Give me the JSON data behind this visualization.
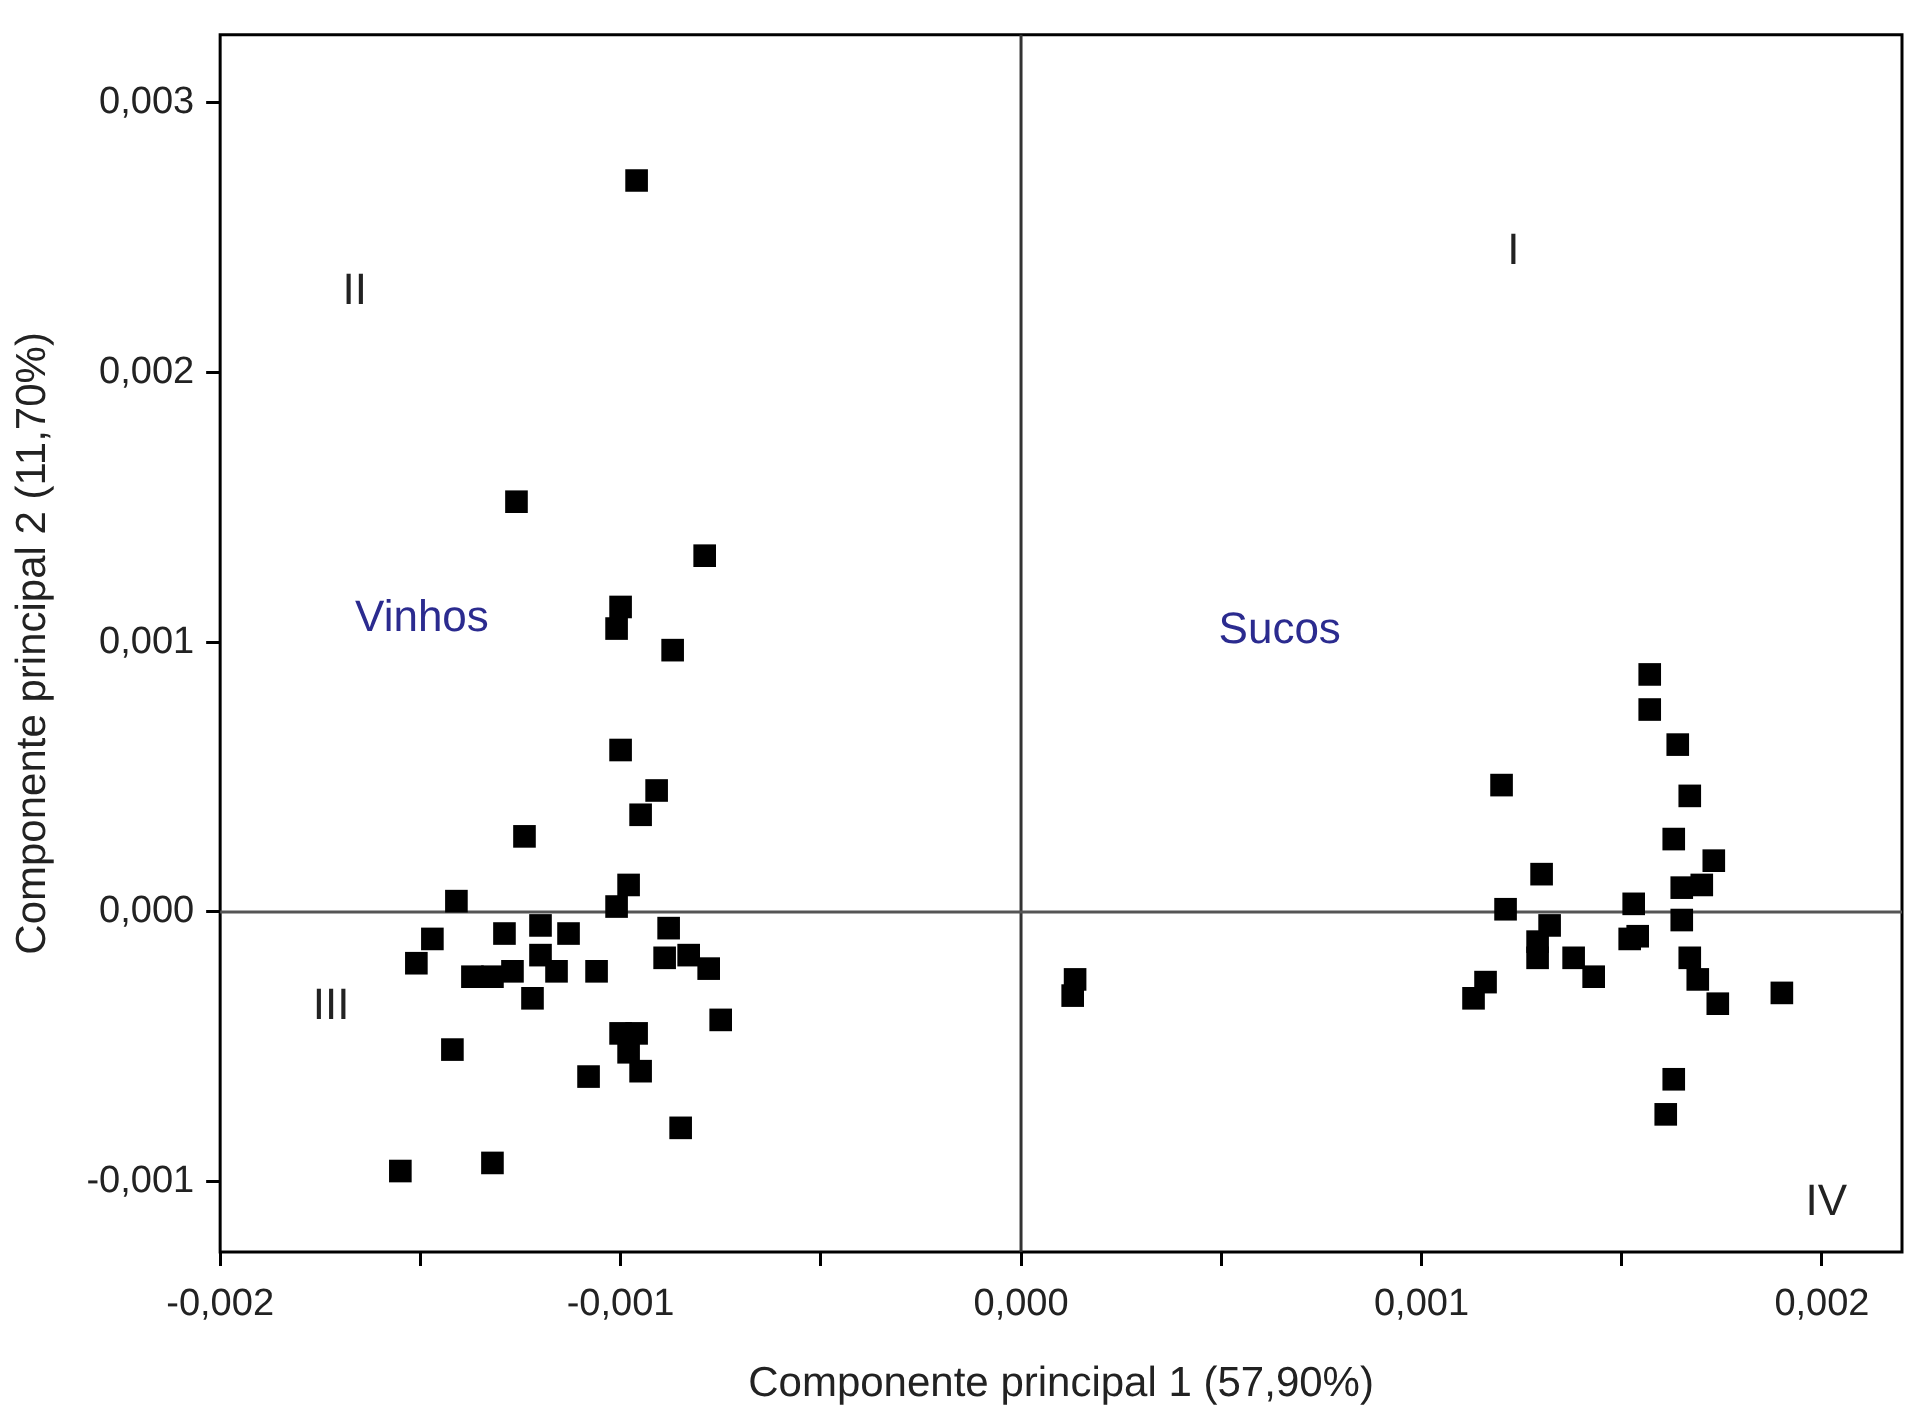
{
  "chart_data": {
    "type": "scatter",
    "xlabel": "Componente principal 1 (57,90%)",
    "ylabel": "Componente principal 2 (11,70%)",
    "xlim": [
      -0.002,
      0.0022
    ],
    "ylim": [
      -0.00126,
      0.00325
    ],
    "xticks": [
      {
        "value": -0.002,
        "label": "-0,002"
      },
      {
        "value": -0.0015,
        "label": null
      },
      {
        "value": -0.001,
        "label": "-0,001"
      },
      {
        "value": -0.0005,
        "label": null
      },
      {
        "value": 0,
        "label": "0,000"
      },
      {
        "value": 0.0005,
        "label": null
      },
      {
        "value": 0.001,
        "label": "0,001"
      },
      {
        "value": 0.0015,
        "label": null
      },
      {
        "value": 0.002,
        "label": "0,002"
      }
    ],
    "yticks": [
      {
        "value": -0.001,
        "label": "-0,001"
      },
      {
        "value": 0,
        "label": "0,000"
      },
      {
        "value": 0.001,
        "label": "0,001"
      },
      {
        "value": 0.002,
        "label": "0,002"
      },
      {
        "value": 0.003,
        "label": "0,003"
      }
    ],
    "grid": false,
    "legend": false,
    "marker": "square",
    "ref_lines": [
      {
        "axis": "x",
        "value": 0,
        "color": "#333333"
      },
      {
        "axis": "y",
        "value": 0,
        "color": "#555555"
      }
    ],
    "annotations": [
      "I",
      "II",
      "III",
      "IV",
      "Vinhos",
      "Sucos"
    ],
    "series": [
      {
        "color": "#000000",
        "x": [
          -0.00096,
          -0.00126,
          -0.00079,
          -0.001,
          -0.00101,
          -0.00087,
          -0.001,
          -0.00091,
          -0.00095,
          -0.00124,
          -0.00098,
          -0.00101,
          -0.00141,
          -0.00147,
          -0.00151,
          -0.00129,
          -0.0012,
          -0.00113,
          -0.00137,
          -0.00132,
          -0.00127,
          -0.0012,
          -0.00116,
          -0.00122,
          -0.00106,
          -0.00088,
          -0.00089,
          -0.00083,
          -0.00078,
          -0.00075,
          -0.001,
          -0.00096,
          -0.00098,
          -0.00095,
          -0.00108,
          -0.00142,
          -0.00085,
          -0.00155,
          -0.00132,
          0.000135,
          0.000129,
          0.00157,
          0.00157,
          0.00164,
          0.0012,
          0.00167,
          0.00163,
          0.00173,
          0.0013,
          0.00165,
          0.0017,
          0.00121,
          0.00153,
          0.00165,
          0.00132,
          0.00129,
          0.00129,
          0.00154,
          0.00152,
          0.00138,
          0.00143,
          0.00167,
          0.00169,
          0.00174,
          0.00116,
          0.00113,
          0.0019,
          0.00163,
          0.00161
        ],
        "values": [
          0.00271,
          0.00152,
          0.00132,
          0.00113,
          0.00105,
          0.00097,
          0.0006,
          0.00045,
          0.00036,
          0.00028,
          0.0001,
          2e-05,
          4e-05,
          -0.0001,
          -0.00019,
          -8e-05,
          -5e-05,
          -8e-05,
          -0.00024,
          -0.00024,
          -0.00022,
          -0.00016,
          -0.00022,
          -0.00032,
          -0.00022,
          -6e-05,
          -0.00017,
          -0.00016,
          -0.00021,
          -0.0004,
          -0.00045,
          -0.00045,
          -0.00052,
          -0.00059,
          -0.00061,
          -0.00051,
          -0.0008,
          -0.00096,
          -0.00093,
          -0.00025,
          -0.00031,
          0.00088,
          0.00075,
          0.00062,
          0.00047,
          0.00043,
          0.00027,
          0.00019,
          0.00014,
          9e-05,
          0.0001,
          1e-05,
          3e-05,
          -3e-05,
          -5e-05,
          -0.00011,
          -0.00017,
          -9e-05,
          -0.0001,
          -0.00017,
          -0.00024,
          -0.00017,
          -0.00025,
          -0.00034,
          -0.00026,
          -0.00032,
          -0.0003,
          -0.00062,
          -0.00075
        ]
      }
    ]
  }
}
